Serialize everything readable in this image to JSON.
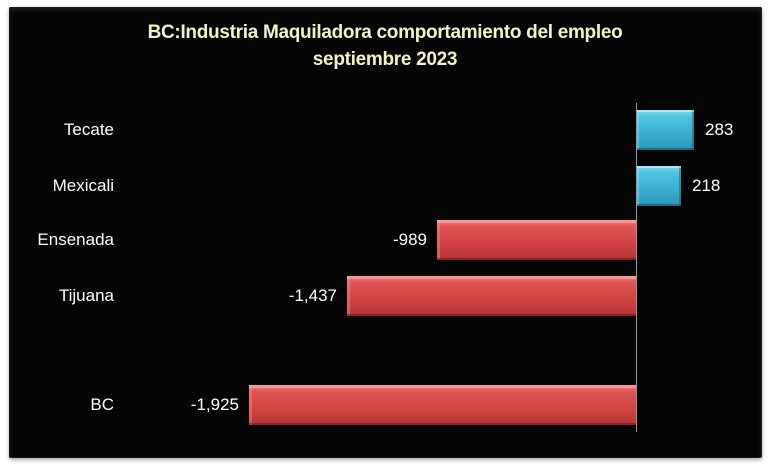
{
  "chart_data": {
    "type": "bar",
    "orientation": "horizontal",
    "title": "BC:Industria Maquiladora comportamiento del empleo",
    "subtitle": "septiembre 2023",
    "categories": [
      "Tecate",
      "Mexicali",
      "Ensenada",
      "Tijuana",
      "BC"
    ],
    "values": [
      283,
      218,
      -989,
      -1437,
      -1925
    ],
    "value_labels": [
      "283",
      "218",
      "-989",
      "-1,437",
      "-1,925"
    ],
    "xlabel": "",
    "ylabel": "",
    "grid": false,
    "legend": null,
    "colors": {
      "positive": "#3bb2d2",
      "negative": "#d54444",
      "background": "#050505",
      "title": "#f5f3c4"
    }
  },
  "title": {
    "line1": "BC:Industria Maquiladora comportamiento del empleo",
    "line2": "septiembre 2023"
  }
}
